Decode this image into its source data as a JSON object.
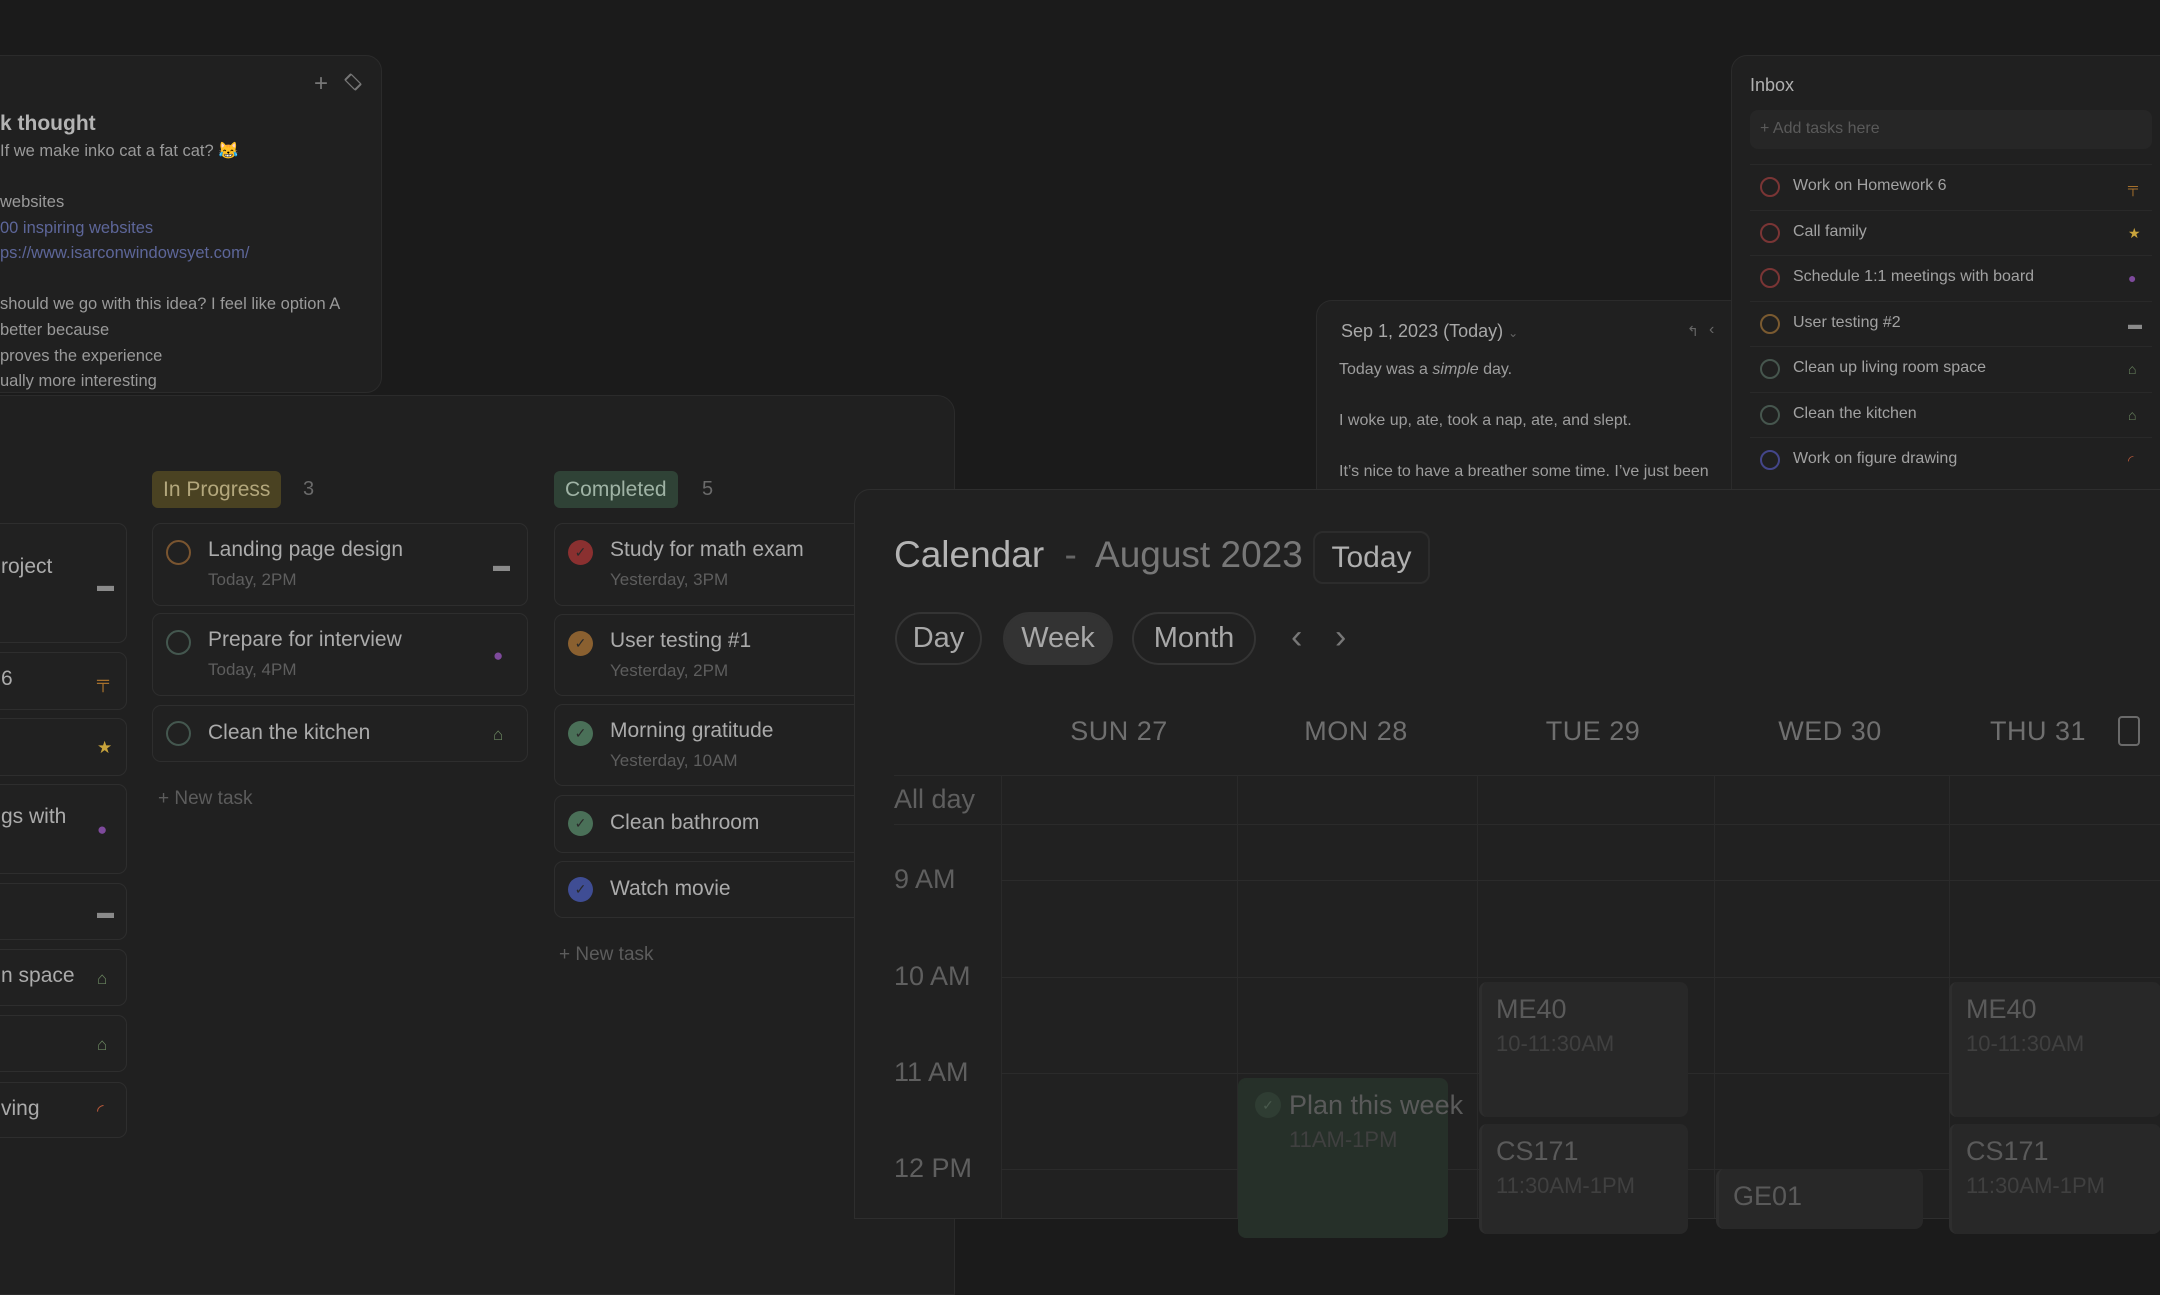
{
  "notes": {
    "title": "k thought",
    "lines": [
      "If we make inko cat a fat cat? 😹",
      "websites",
      "00 inspiring websites",
      "ps://www.isarconwindowsyet.com/",
      "should we go with this idea? I feel like option A",
      "better because",
      "proves the experience",
      "ually more interesting"
    ],
    "icons": [
      "plus-icon",
      "layers-icon"
    ]
  },
  "kanban": {
    "left_column": {
      "cards": [
        {
          "title": "roject",
          "icon": "laptop"
        },
        {
          "title": "6",
          "icon": "construction"
        },
        {
          "title": "",
          "icon": "star"
        },
        {
          "title": "gs with",
          "icon": "crystal-ball"
        },
        {
          "title": "",
          "icon": "laptop"
        },
        {
          "title": "n space",
          "icon": "house"
        },
        {
          "title": "",
          "icon": "house"
        },
        {
          "title": "ving",
          "icon": "rainbow"
        }
      ]
    },
    "in_progress": {
      "label": "In Progress",
      "count": "3",
      "color": "#4a4222",
      "cards": [
        {
          "title": "Landing page design",
          "sub": "Today, 2PM",
          "icon": "laptop",
          "ring": "#7a5530"
        },
        {
          "title": "Prepare for interview",
          "sub": "Today, 4PM",
          "icon": "crystal-ball",
          "ring": "#44574f"
        },
        {
          "title": "Clean the kitchen",
          "sub": "",
          "icon": "house",
          "ring": "#44574f"
        }
      ],
      "new_task": "+ New task"
    },
    "completed": {
      "label": "Completed",
      "count": "5",
      "color": "#2f4236",
      "cards": [
        {
          "title": "Study for math exam",
          "sub": "Yesterday, 3PM",
          "check": "#8a3030"
        },
        {
          "title": "User testing #1",
          "sub": "Yesterday, 2PM",
          "check": "#8a6030"
        },
        {
          "title": "Morning gratitude",
          "sub": "Yesterday, 10AM",
          "check": "#4a7058"
        },
        {
          "title": "Clean bathroom",
          "sub": "",
          "check": "#4a7058"
        },
        {
          "title": "Watch movie",
          "sub": "",
          "check": "#3f4d94"
        }
      ],
      "new_task": "+ New task"
    }
  },
  "journal": {
    "date": "Sep 1, 2023 (Today)",
    "line1_a": "Today was a ",
    "line1_em": "simple",
    "line1_b": " day.",
    "line2": "I woke up, ate, took a nap, ate, and slept.",
    "line3": "It’s nice to have a breather some time. I’ve just been"
  },
  "inbox": {
    "title": "Inbox",
    "placeholder": "+ Add tasks here",
    "items": [
      {
        "text": "Work on Homework 6",
        "ring": "#7a3535",
        "icon": "construction"
      },
      {
        "text": "Call family",
        "ring": "#7a3535",
        "icon": "star"
      },
      {
        "text": "Schedule 1:1 meetings with board",
        "ring": "#7a3535",
        "icon": "crystal-ball"
      },
      {
        "text": "User testing #2",
        "ring": "#7a5a30",
        "icon": "laptop"
      },
      {
        "text": "Clean up living room space",
        "ring": "#46564e",
        "icon": "house"
      },
      {
        "text": "Clean the kitchen",
        "ring": "#46564e",
        "icon": "house"
      },
      {
        "text": "Work on figure drawing",
        "ring": "#44468a",
        "icon": "rainbow"
      }
    ]
  },
  "calendar": {
    "title": "Calendar",
    "separator": "-",
    "month": "August 2023",
    "today": "Today",
    "views": [
      "Day",
      "Week",
      "Month"
    ],
    "active_view": "Week",
    "days": [
      "SUN 27",
      "MON 28",
      "TUE 29",
      "WED 30",
      "THU 31"
    ],
    "all_day": "All day",
    "hours": [
      "9 AM",
      "10 AM",
      "11 AM",
      "12 PM"
    ],
    "events": [
      {
        "day": "TUE 29",
        "title": "ME40",
        "time": "10-11:30AM"
      },
      {
        "day": "TUE 29",
        "title": "CS171",
        "time": "11:30AM-1PM"
      },
      {
        "day": "THU 31",
        "title": "ME40",
        "time": "10-11:30AM"
      },
      {
        "day": "THU 31",
        "title": "CS171",
        "time": "11:30AM-1PM"
      },
      {
        "day": "MON 28",
        "title": "Plan this week",
        "time": "11AM-1PM",
        "done": true
      },
      {
        "day": "WED 30",
        "title": "GE01",
        "time": ""
      }
    ]
  }
}
